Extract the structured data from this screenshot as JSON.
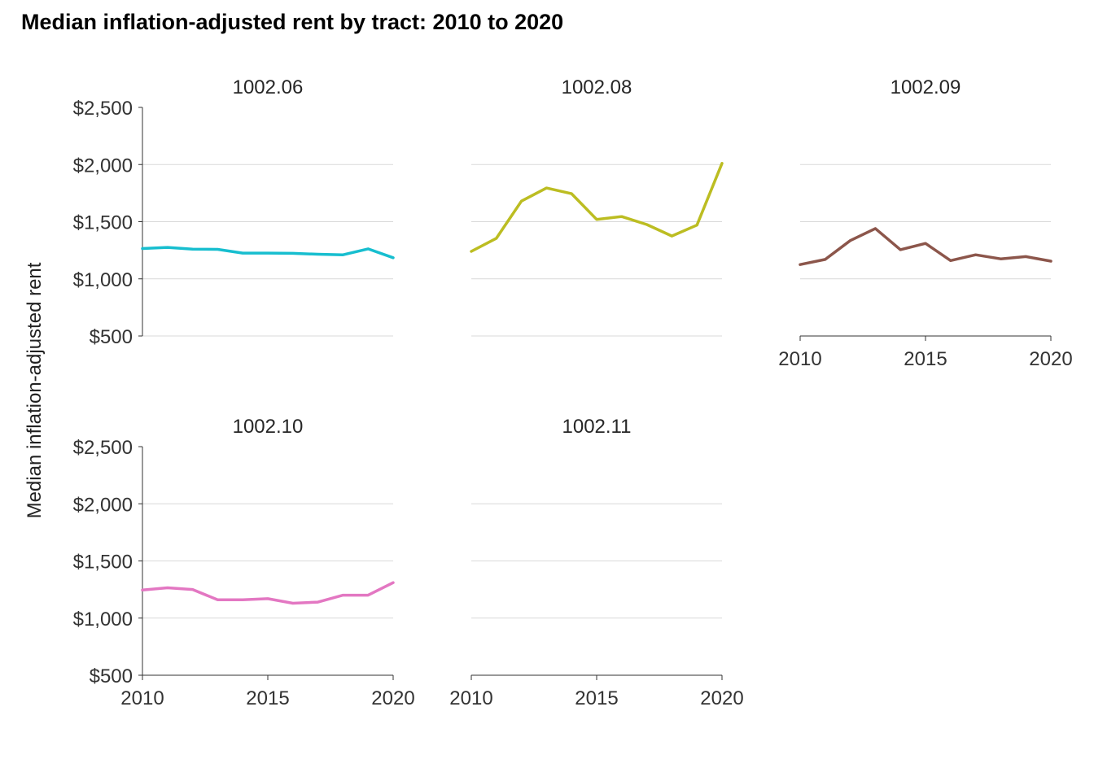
{
  "chart_data": {
    "type": "line",
    "title": "Median inflation-adjusted rent by tract: 2010 to 2020",
    "xlabel": "",
    "ylabel": "Median inflation-adjusted rent",
    "xlim": [
      2010,
      2020
    ],
    "ylim": [
      500,
      2500
    ],
    "x_ticks": [
      2010,
      2015,
      2020
    ],
    "x_tick_labels": [
      "2010",
      "2015",
      "2020"
    ],
    "y_ticks": [
      500,
      1000,
      1500,
      2000,
      2500
    ],
    "y_tick_labels": [
      "$500",
      "$1,000",
      "$1,500",
      "$2,000",
      "$2,500"
    ],
    "grid": "horizontal",
    "legend": "none",
    "facets": [
      {
        "name": "1002.06",
        "color": "#17becf",
        "x": [
          2010,
          2011,
          2012,
          2013,
          2014,
          2015,
          2016,
          2017,
          2018,
          2019,
          2020
        ],
        "y": [
          1265,
          1275,
          1260,
          1258,
          1225,
          1225,
          1223,
          1215,
          1210,
          1262,
          1185
        ]
      },
      {
        "name": "1002.08",
        "color": "#bcbd22",
        "x": [
          2010,
          2011,
          2012,
          2013,
          2014,
          2015,
          2016,
          2017,
          2018,
          2019,
          2020
        ],
        "y": [
          1240,
          1355,
          1680,
          1795,
          1745,
          1520,
          1545,
          1475,
          1375,
          1470,
          2010
        ]
      },
      {
        "name": "1002.09",
        "color": "#8c564b",
        "x": [
          2010,
          2011,
          2012,
          2013,
          2014,
          2015,
          2016,
          2017,
          2018,
          2019,
          2020
        ],
        "y": [
          1125,
          1170,
          1335,
          1440,
          1255,
          1310,
          1160,
          1210,
          1175,
          1195,
          1155
        ]
      },
      {
        "name": "1002.10",
        "color": "#e377c2",
        "x": [
          2010,
          2011,
          2012,
          2013,
          2014,
          2015,
          2016,
          2017,
          2018,
          2019,
          2020
        ],
        "y": [
          1245,
          1265,
          1250,
          1160,
          1160,
          1170,
          1130,
          1140,
          1200,
          1200,
          1310
        ]
      },
      {
        "name": "1002.11",
        "color": "#7f7f7f",
        "x": [],
        "y": []
      }
    ]
  }
}
